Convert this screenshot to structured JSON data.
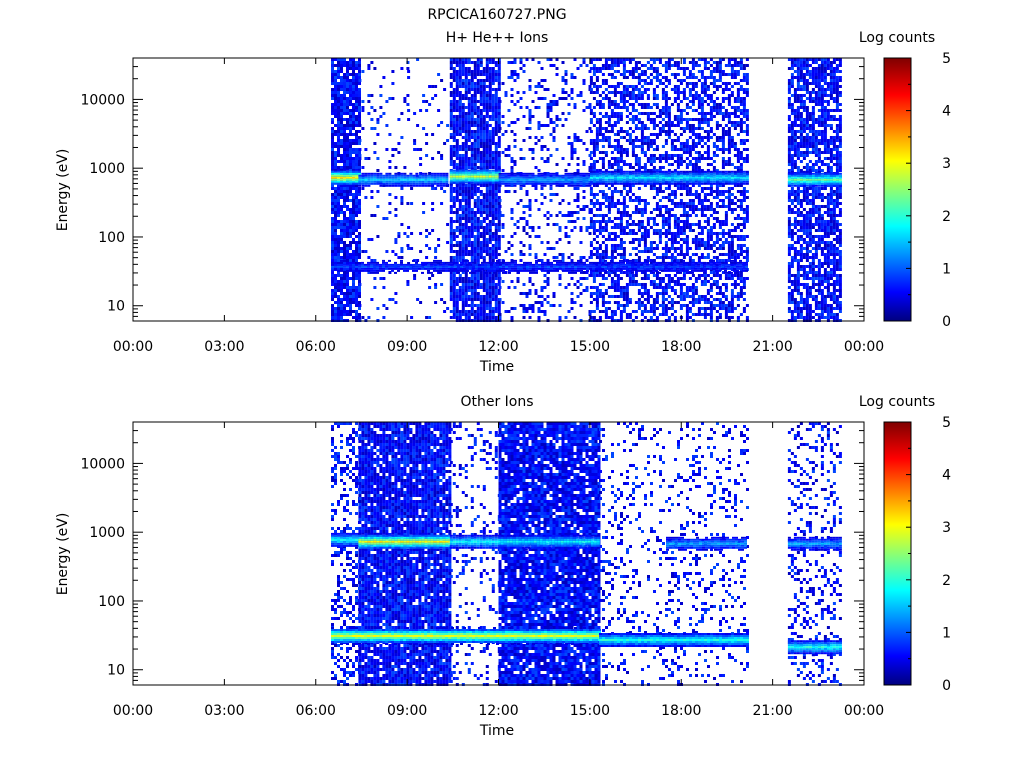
{
  "figure": {
    "title": "RPCICA160727.PNG"
  },
  "chart_data": [
    {
      "type": "heatmap",
      "title": "H+ He++ Ions",
      "xlabel": "Time",
      "ylabel": "Energy (eV)",
      "x_ticks": [
        "00:00",
        "03:00",
        "06:00",
        "09:00",
        "12:00",
        "15:00",
        "18:00",
        "21:00",
        "00:00"
      ],
      "y_ticks": [
        {
          "value": 10,
          "label": "10"
        },
        {
          "value": 100,
          "label": "100"
        },
        {
          "value": 1000,
          "label": "1000"
        },
        {
          "value": 10000,
          "label": "10000"
        }
      ],
      "y_scale": "log",
      "ylim": [
        6,
        40000
      ],
      "xlim_hours": [
        0,
        24
      ],
      "colorbar": {
        "label": "Log counts",
        "range": [
          0,
          5
        ],
        "ticks": [
          "0",
          "1",
          "2",
          "3",
          "4",
          "5"
        ]
      },
      "data_segments_hours": [
        [
          6.5,
          7.4
        ],
        [
          7.4,
          9.0
        ],
        [
          9.0,
          10.3
        ],
        [
          10.4,
          12.0
        ],
        [
          12.0,
          15.0
        ],
        [
          15.0,
          20.15
        ],
        [
          21.5,
          23.2
        ]
      ],
      "segment_background_density": [
        0.85,
        0.1,
        0.08,
        0.85,
        0.2,
        0.55,
        0.75
      ],
      "bands": [
        {
          "from_hour": 6.5,
          "to_hour": 7.4,
          "energy_ev": 750,
          "log_counts": 3.2
        },
        {
          "from_hour": 7.4,
          "to_hour": 10.3,
          "energy_ev": 700,
          "log_counts": 1.6
        },
        {
          "from_hour": 10.4,
          "to_hour": 12.0,
          "energy_ev": 780,
          "log_counts": 2.9
        },
        {
          "from_hour": 12.0,
          "to_hour": 15.0,
          "energy_ev": 700,
          "log_counts": 1.4
        },
        {
          "from_hour": 15.0,
          "to_hour": 20.15,
          "energy_ev": 750,
          "log_counts": 1.8
        },
        {
          "from_hour": 21.5,
          "to_hour": 23.2,
          "energy_ev": 700,
          "log_counts": 2.4
        },
        {
          "from_hour": 6.5,
          "to_hour": 20.15,
          "energy_ev": 38,
          "log_counts": 0.9
        }
      ]
    },
    {
      "type": "heatmap",
      "title": "Other Ions",
      "xlabel": "Time",
      "ylabel": "Energy (eV)",
      "x_ticks": [
        "00:00",
        "03:00",
        "06:00",
        "09:00",
        "12:00",
        "15:00",
        "18:00",
        "21:00",
        "00:00"
      ],
      "y_ticks": [
        {
          "value": 10,
          "label": "10"
        },
        {
          "value": 100,
          "label": "100"
        },
        {
          "value": 1000,
          "label": "1000"
        },
        {
          "value": 10000,
          "label": "10000"
        }
      ],
      "y_scale": "log",
      "ylim": [
        6,
        40000
      ],
      "xlim_hours": [
        0,
        24
      ],
      "colorbar": {
        "label": "Log counts",
        "range": [
          0,
          5
        ],
        "ticks": [
          "0",
          "1",
          "2",
          "3",
          "4",
          "5"
        ]
      },
      "data_segments_hours": [
        [
          6.5,
          7.4
        ],
        [
          7.4,
          10.4
        ],
        [
          10.4,
          12.0
        ],
        [
          12.0,
          15.3
        ],
        [
          15.3,
          20.15
        ],
        [
          21.5,
          23.2
        ]
      ],
      "segment_background_density": [
        0.35,
        0.9,
        0.15,
        0.9,
        0.15,
        0.25
      ],
      "bands": [
        {
          "from_hour": 6.5,
          "to_hour": 7.4,
          "energy_ev": 800,
          "log_counts": 1.9
        },
        {
          "from_hour": 7.4,
          "to_hour": 10.4,
          "energy_ev": 750,
          "log_counts": 3.1
        },
        {
          "from_hour": 10.4,
          "to_hour": 15.3,
          "energy_ev": 750,
          "log_counts": 1.9
        },
        {
          "from_hour": 17.5,
          "to_hour": 20.15,
          "energy_ev": 700,
          "log_counts": 1.4
        },
        {
          "from_hour": 21.5,
          "to_hour": 23.2,
          "energy_ev": 700,
          "log_counts": 1.4
        },
        {
          "from_hour": 6.5,
          "to_hour": 15.3,
          "energy_ev": 32,
          "log_counts": 3.0
        },
        {
          "from_hour": 15.3,
          "to_hour": 20.15,
          "energy_ev": 28,
          "log_counts": 2.0
        },
        {
          "from_hour": 21.5,
          "to_hour": 23.2,
          "energy_ev": 22,
          "log_counts": 2.0
        }
      ]
    }
  ]
}
